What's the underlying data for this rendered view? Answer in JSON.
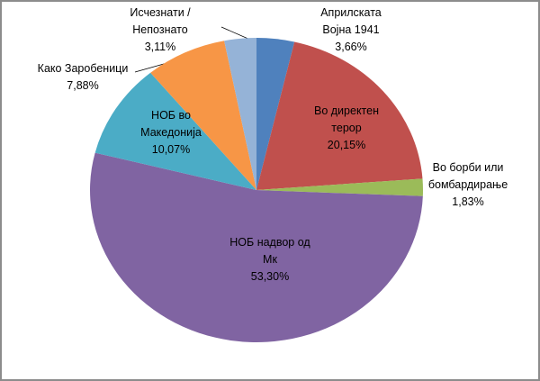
{
  "chart_data": {
    "type": "pie",
    "categories": [
      "Априлската\nВојна 1941",
      "Во директен\nтерор",
      "Во борби или\nбомбардирање",
      "НОБ надвор од\nМк",
      "НОБ во\nМакедонија",
      "Како Заробеници",
      "Исчезнати /\nНепознато"
    ],
    "values": [
      3.66,
      20.15,
      1.83,
      53.3,
      10.07,
      7.88,
      3.11
    ],
    "value_labels": [
      "3,66%",
      "20,15%",
      "1,83%",
      "53,30%",
      "10,07%",
      "7,88%",
      "3,11%"
    ],
    "colors": [
      "#4f81bd",
      "#c0504d",
      "#9bbb59",
      "#8064a2",
      "#4bacc6",
      "#f79646",
      "#95b3d7"
    ]
  }
}
